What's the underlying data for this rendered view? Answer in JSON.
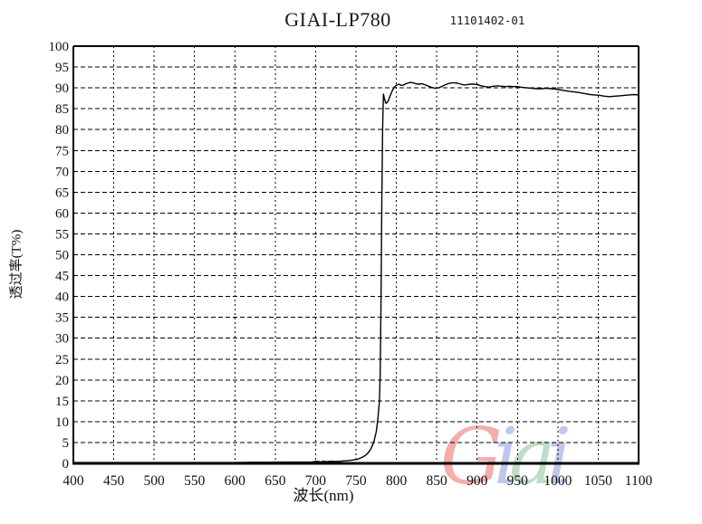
{
  "header": {
    "title": "GIAI-LP780",
    "serial": "11101402-01"
  },
  "watermark": {
    "text": "Giai",
    "letters": [
      {
        "ch": "G",
        "color": "#f2a19e"
      },
      {
        "ch": "i",
        "color": "#b7bdeb"
      },
      {
        "ch": "a",
        "color": "#b3d8bb"
      },
      {
        "ch": "i",
        "color": "#b7bdeb"
      }
    ]
  },
  "chart_data": {
    "type": "line",
    "title": "GIAI-LP780",
    "serial": "11101402-01",
    "xlabel": "波长(nm)",
    "ylabel": "透过率(T%)",
    "xlim": [
      400,
      1100
    ],
    "ylim": [
      0,
      100
    ],
    "x_ticks": [
      400,
      450,
      500,
      550,
      600,
      650,
      700,
      750,
      800,
      850,
      900,
      950,
      1000,
      1050,
      1100
    ],
    "y_ticks": [
      0,
      5,
      10,
      15,
      20,
      25,
      30,
      35,
      40,
      45,
      50,
      55,
      60,
      65,
      70,
      75,
      80,
      85,
      90,
      95,
      100
    ],
    "grid": "dashed",
    "legend": "none",
    "line_color": "#000000",
    "series": [
      {
        "name": "transmittance",
        "x": [
          400,
          420,
          440,
          460,
          480,
          500,
          520,
          540,
          560,
          580,
          600,
          620,
          640,
          660,
          680,
          695,
          702,
          706,
          710,
          714,
          718,
          724,
          730,
          736,
          742,
          748,
          752,
          756,
          760,
          764,
          768,
          772,
          775,
          777,
          779,
          780,
          781,
          782,
          783,
          784,
          785,
          786,
          787,
          788,
          789,
          790,
          792,
          794,
          796,
          798,
          800,
          803,
          806,
          809,
          812,
          815,
          818,
          821,
          824,
          828,
          832,
          836,
          840,
          844,
          848,
          852,
          856,
          860,
          864,
          868,
          872,
          876,
          880,
          884,
          888,
          892,
          896,
          900,
          905,
          910,
          915,
          920,
          925,
          930,
          935,
          940,
          945,
          950,
          956,
          962,
          968,
          974,
          980,
          986,
          992,
          998,
          1004,
          1010,
          1016,
          1022,
          1028,
          1034,
          1040,
          1046,
          1052,
          1058,
          1064,
          1070,
          1076,
          1082,
          1088,
          1094,
          1100
        ],
        "y": [
          0.2,
          0.2,
          0.2,
          0.2,
          0.2,
          0.2,
          0.2,
          0.2,
          0.2,
          0.2,
          0.2,
          0.25,
          0.25,
          0.3,
          0.3,
          0.35,
          0.5,
          0.35,
          0.55,
          0.4,
          0.5,
          0.45,
          0.5,
          0.6,
          0.7,
          0.85,
          1.0,
          1.3,
          1.7,
          2.3,
          3.3,
          5.0,
          7.5,
          10.5,
          15,
          21,
          38,
          62,
          80,
          88.5,
          87.6,
          86.9,
          86.3,
          86.4,
          86.6,
          86.9,
          87.9,
          88.9,
          89.7,
          90.3,
          90.6,
          90.9,
          90.6,
          90.7,
          91.0,
          91.2,
          91.3,
          91.2,
          91.0,
          90.9,
          91.0,
          90.7,
          90.4,
          90.1,
          89.9,
          90.0,
          90.3,
          90.7,
          91.0,
          91.2,
          91.2,
          91.1,
          90.9,
          90.7,
          90.8,
          90.9,
          90.9,
          90.8,
          90.5,
          90.3,
          90.2,
          90.4,
          90.5,
          90.4,
          90.3,
          90.4,
          90.3,
          90.3,
          90.1,
          90.0,
          89.9,
          89.8,
          89.8,
          89.9,
          89.8,
          89.7,
          89.5,
          89.3,
          89.1,
          89.0,
          88.8,
          88.6,
          88.4,
          88.3,
          88.2,
          88.0,
          87.9,
          88.0,
          88.1,
          88.2,
          88.3,
          88.4,
          88.3
        ]
      }
    ]
  }
}
